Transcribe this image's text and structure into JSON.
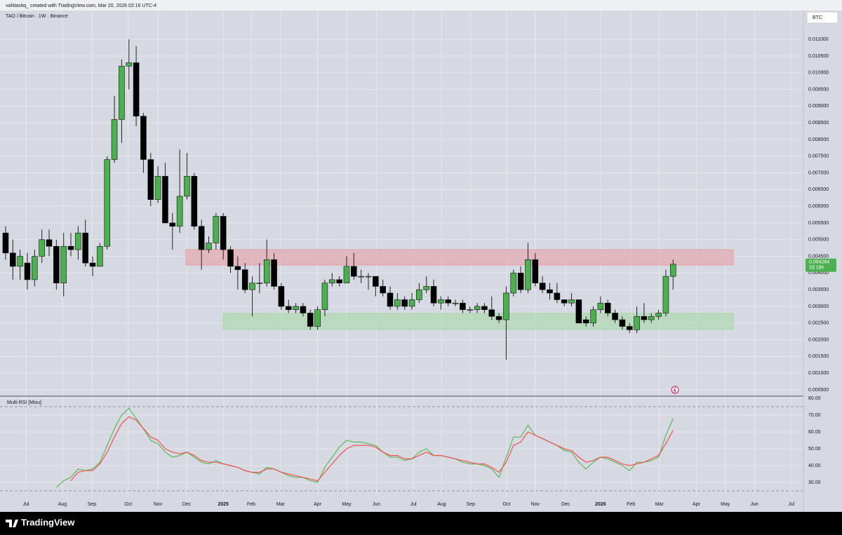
{
  "header": {
    "credit": "vaNtastiq_  created with TradingView.com, Mar 20, 2026 02:16 UTC-4",
    "currency": "BTC",
    "brand": "TradingView"
  },
  "chart_data": [
    {
      "type": "candlestick",
      "title": "TAO / Bitcoin · 1W · Binance",
      "up_color": "#4caf50",
      "down_color": "#000000",
      "xlim": [
        -0.77,
        109.96
      ],
      "ylim": [
        0.00031,
        0.01197
      ],
      "yticks": [
        {
          "value": 0.0005,
          "label": "0.000500"
        },
        {
          "value": 0.001,
          "label": "0.001000"
        },
        {
          "value": 0.0015,
          "label": "0.001500"
        },
        {
          "value": 0.002,
          "label": "0.002000"
        },
        {
          "value": 0.0025,
          "label": "0.002500"
        },
        {
          "value": 0.003,
          "label": "0.003000"
        },
        {
          "value": 0.0035,
          "label": "0.003500"
        },
        {
          "value": 0.004,
          "label": "0.004000"
        },
        {
          "value": 0.0045,
          "label": "0.004500"
        },
        {
          "value": 0.005,
          "label": "0.005000"
        },
        {
          "value": 0.0055,
          "label": "0.005500"
        },
        {
          "value": 0.006,
          "label": "0.006000"
        },
        {
          "value": 0.0065,
          "label": "0.006500"
        },
        {
          "value": 0.007,
          "label": "0.007000"
        },
        {
          "value": 0.0075,
          "label": "0.007500"
        },
        {
          "value": 0.008,
          "label": "0.008000"
        },
        {
          "value": 0.0085,
          "label": "0.008500"
        },
        {
          "value": 0.009,
          "label": "0.009000"
        },
        {
          "value": 0.0095,
          "label": "0.009500"
        },
        {
          "value": 0.01,
          "label": "0.010000"
        },
        {
          "value": 0.0105,
          "label": "0.010500"
        },
        {
          "value": 0.011,
          "label": "0.011000"
        }
      ],
      "open": [
        0.0052,
        0.0046,
        0.0042,
        0.0043,
        0.0038,
        0.0045,
        0.005,
        0.0048,
        0.0037,
        0.0048,
        0.0047,
        0.0052,
        0.0043,
        0.0042,
        0.0048,
        0.0074,
        0.0086,
        0.0102,
        0.0103,
        0.0087,
        0.0074,
        0.0062,
        0.0069,
        0.0055,
        0.0054,
        0.0063,
        0.0069,
        0.0054,
        0.0047,
        0.0049,
        0.0057,
        0.0047,
        0.0042,
        0.0041,
        0.0035,
        0.0037,
        0.0037,
        0.0044,
        0.0036,
        0.003,
        0.0029,
        0.003,
        0.0028,
        0.0024,
        0.0029,
        0.0037,
        0.0038,
        0.0037,
        0.0042,
        0.0039,
        0.0039,
        0.0039,
        0.0036,
        0.0034,
        0.003,
        0.0032,
        0.003,
        0.0032,
        0.0035,
        0.0036,
        0.0031,
        0.0032,
        0.0031,
        0.0031,
        0.0029,
        0.0029,
        0.003,
        0.0029,
        0.0027,
        0.0026,
        0.0034,
        0.004,
        0.0035,
        0.0044,
        0.0037,
        0.0035,
        0.0034,
        0.0032,
        0.0031,
        0.0032,
        0.0026,
        0.0025,
        0.0029,
        0.0031,
        0.0028,
        0.0026,
        0.0024,
        0.0023,
        0.0027,
        0.0026,
        0.0027,
        0.0028,
        0.0039
      ],
      "high": [
        0.0054,
        0.005,
        0.0047,
        0.0046,
        0.0047,
        0.0053,
        0.0053,
        0.005,
        0.0052,
        0.0052,
        0.0054,
        0.0056,
        0.0045,
        0.0049,
        0.0075,
        0.0093,
        0.0104,
        0.011,
        0.0108,
        0.0088,
        0.0076,
        0.0072,
        0.0073,
        0.0058,
        0.0077,
        0.0076,
        0.007,
        0.0056,
        0.0051,
        0.0058,
        0.0058,
        0.0048,
        0.0045,
        0.0043,
        0.0039,
        0.0043,
        0.005,
        0.0046,
        0.0037,
        0.0032,
        0.0031,
        0.0031,
        0.0029,
        0.003,
        0.0038,
        0.004,
        0.0039,
        0.0045,
        0.0046,
        0.0041,
        0.004,
        0.0039,
        0.0038,
        0.0036,
        0.0034,
        0.0033,
        0.0034,
        0.0037,
        0.0039,
        0.0038,
        0.0033,
        0.0033,
        0.0032,
        0.0032,
        0.003,
        0.0031,
        0.0031,
        0.0033,
        0.0028,
        0.0036,
        0.0041,
        0.0042,
        0.0049,
        0.0046,
        0.0039,
        0.0037,
        0.0037,
        0.0032,
        0.0034,
        0.0032,
        0.0027,
        0.003,
        0.0033,
        0.0032,
        0.0029,
        0.0027,
        0.0025,
        0.003,
        0.0031,
        0.0028,
        0.0029,
        0.0041,
        0.0044
      ],
      "low": [
        0.0044,
        0.0038,
        0.0038,
        0.0035,
        0.0036,
        0.0043,
        0.0045,
        0.0035,
        0.0033,
        0.0045,
        0.0044,
        0.0042,
        0.0039,
        0.0042,
        0.0047,
        0.0073,
        0.0079,
        0.0095,
        0.0084,
        0.007,
        0.006,
        0.0061,
        0.0055,
        0.0047,
        0.0052,
        0.0062,
        0.0053,
        0.0041,
        0.0046,
        0.0047,
        0.0044,
        0.004,
        0.0035,
        0.0034,
        0.0027,
        0.0034,
        0.0036,
        0.0035,
        0.0029,
        0.0028,
        0.0028,
        0.0027,
        0.0023,
        0.0023,
        0.0027,
        0.0036,
        0.0036,
        0.0037,
        0.0038,
        0.0037,
        0.0035,
        0.0033,
        0.0033,
        0.0029,
        0.0029,
        0.0029,
        0.0029,
        0.0031,
        0.0034,
        0.003,
        0.0029,
        0.003,
        0.003,
        0.0028,
        0.0028,
        0.0028,
        0.0028,
        0.0026,
        0.0025,
        0.0014,
        0.0033,
        0.0034,
        0.0034,
        0.0036,
        0.0034,
        0.0032,
        0.0031,
        0.003,
        0.003,
        0.0025,
        0.0024,
        0.0024,
        0.0028,
        0.0027,
        0.0025,
        0.0023,
        0.0022,
        0.0022,
        0.0025,
        0.0025,
        0.0026,
        0.0027,
        0.0035
      ],
      "close": [
        0.0046,
        0.0042,
        0.0045,
        0.0038,
        0.0045,
        0.005,
        0.0048,
        0.0037,
        0.0048,
        0.0047,
        0.0052,
        0.0043,
        0.0042,
        0.0048,
        0.0074,
        0.0086,
        0.0102,
        0.0103,
        0.0087,
        0.0074,
        0.0062,
        0.0069,
        0.0055,
        0.0054,
        0.0063,
        0.0069,
        0.0054,
        0.0047,
        0.0049,
        0.0057,
        0.0047,
        0.0042,
        0.0041,
        0.0035,
        0.0037,
        0.0037,
        0.0044,
        0.0036,
        0.003,
        0.0029,
        0.003,
        0.0028,
        0.0024,
        0.0029,
        0.0037,
        0.0038,
        0.0037,
        0.0042,
        0.0039,
        0.0039,
        0.0039,
        0.0036,
        0.0034,
        0.003,
        0.0032,
        0.003,
        0.0032,
        0.0035,
        0.0036,
        0.0031,
        0.0032,
        0.0031,
        0.0031,
        0.0029,
        0.0029,
        0.003,
        0.0029,
        0.0027,
        0.0026,
        0.0034,
        0.004,
        0.0035,
        0.0044,
        0.0037,
        0.0035,
        0.0034,
        0.0032,
        0.0031,
        0.0032,
        0.0025,
        0.0025,
        0.0029,
        0.0031,
        0.0028,
        0.0026,
        0.0024,
        0.0023,
        0.0027,
        0.0026,
        0.0027,
        0.0028,
        0.0039,
        0.004264
      ],
      "countdown": "2d 18h",
      "zones": [
        {
          "color": "#e8a0a8",
          "start": 24.85,
          "end": 100.3,
          "low": 0.00424,
          "high": 0.0047
        },
        {
          "color": "#a8d8a8",
          "start": 30.0,
          "end": 100.3,
          "low": 0.00231,
          "high": 0.00279
        }
      ]
    },
    {
      "type": "line",
      "title": "Multi RSI [Misu]",
      "xlim": [
        -0.77,
        109.96
      ],
      "ylim": [
        22.1,
        80.8
      ],
      "yticks": [
        {
          "value": 30,
          "label": "30.00"
        },
        {
          "value": 40,
          "label": "40.00"
        },
        {
          "value": 50,
          "label": "50.00"
        },
        {
          "value": 60,
          "label": "60.00"
        },
        {
          "value": 70,
          "label": "70.00"
        },
        {
          "value": 80,
          "label": "80.00"
        }
      ],
      "band_lines": [
        75,
        25
      ],
      "xticks": [
        {
          "value": 2.8,
          "label": "Jul"
        },
        {
          "value": 7.83,
          "label": "Aug"
        },
        {
          "value": 11.9,
          "label": "Sep"
        },
        {
          "value": 16.9,
          "label": "Oct"
        },
        {
          "value": 21.0,
          "label": "Nov"
        },
        {
          "value": 24.95,
          "label": "Dec"
        },
        {
          "value": 30.0,
          "label": "2025"
        },
        {
          "value": 33.85,
          "label": "Feb"
        },
        {
          "value": 37.9,
          "label": "Mar"
        },
        {
          "value": 43.0,
          "label": "Apr"
        },
        {
          "value": 47.0,
          "label": "May"
        },
        {
          "value": 51.1,
          "label": "Jun"
        },
        {
          "value": 56.2,
          "label": "Jul"
        },
        {
          "value": 60.1,
          "label": "Aug"
        },
        {
          "value": 64.1,
          "label": "Sep"
        },
        {
          "value": 69.05,
          "label": "Oct"
        },
        {
          "value": 73.0,
          "label": "Nov"
        },
        {
          "value": 77.2,
          "label": "Dec"
        },
        {
          "value": 82.0,
          "label": "2026"
        },
        {
          "value": 86.2,
          "label": "Feb"
        },
        {
          "value": 90.1,
          "label": "Mar"
        },
        {
          "value": 95.2,
          "label": "Apr"
        },
        {
          "value": 99.2,
          "label": "May"
        },
        {
          "value": 103.2,
          "label": "Jun"
        },
        {
          "value": 108.3,
          "label": "Jul"
        }
      ],
      "series": [
        {
          "color": "#5cb85c",
          "values": [
            null,
            null,
            null,
            null,
            null,
            null,
            null,
            27,
            31,
            33,
            38,
            37,
            38,
            42,
            52,
            62,
            70,
            74,
            68,
            62,
            55,
            53,
            48,
            45,
            46,
            48,
            45,
            42,
            41,
            43,
            41,
            40,
            39,
            37,
            36,
            35,
            39,
            38,
            36,
            34,
            33,
            33,
            31,
            30,
            39,
            45,
            51,
            55,
            54,
            54,
            53,
            52,
            48,
            45,
            45,
            43,
            44,
            48,
            50,
            46,
            46,
            45,
            44,
            42,
            41,
            41,
            40,
            38,
            33,
            45,
            57,
            57,
            64,
            58,
            56,
            54,
            52,
            49,
            48,
            42,
            38,
            42,
            45,
            44,
            42,
            40,
            37,
            42,
            42,
            43,
            45,
            58,
            68
          ]
        },
        {
          "color": "#ef5350",
          "values": [
            null,
            null,
            null,
            null,
            null,
            null,
            null,
            null,
            null,
            31,
            36,
            37,
            37,
            41,
            48,
            57,
            65,
            69,
            67,
            62,
            57,
            55,
            50,
            48,
            47,
            48,
            46,
            43,
            42,
            42,
            41,
            40,
            39,
            37,
            36,
            36,
            38,
            38,
            36,
            35,
            34,
            33,
            32,
            31,
            36,
            41,
            46,
            50,
            52,
            52,
            52,
            51,
            48,
            46,
            46,
            44,
            44,
            46,
            48,
            46,
            46,
            45,
            44,
            43,
            42,
            41,
            41,
            39,
            36,
            42,
            52,
            54,
            60,
            58,
            56,
            54,
            52,
            50,
            49,
            45,
            42,
            43,
            45,
            45,
            43,
            41,
            40,
            41,
            42,
            44,
            46,
            53,
            61
          ]
        }
      ]
    }
  ]
}
